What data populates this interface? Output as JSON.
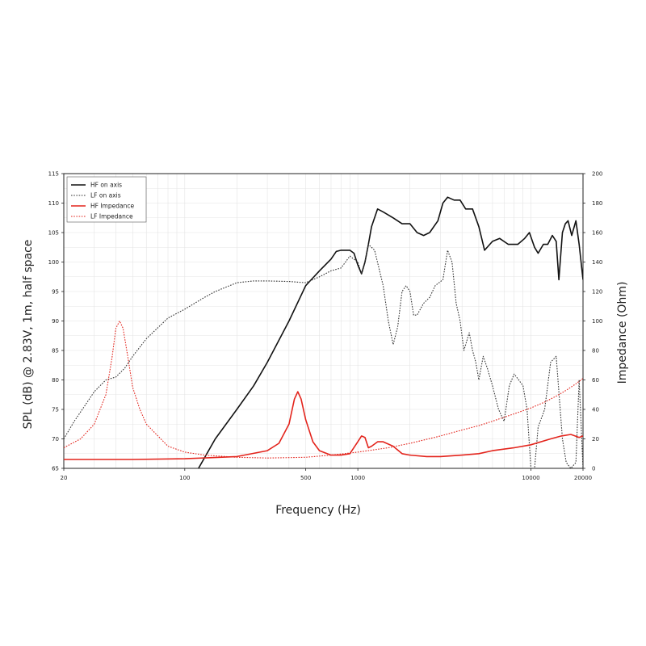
{
  "chart_data": {
    "type": "line",
    "xlabel": "Frequency (Hz)",
    "ylabel_left": "SPL (dB) @ 2.83V, 1m, half space",
    "ylabel_right": "Impedance (Ohm)",
    "x_scale": "log",
    "xlim": [
      20,
      20000
    ],
    "ylim_left": [
      65,
      115
    ],
    "ylim_right": [
      0,
      200
    ],
    "x_ticks": [
      {
        "value": 20,
        "label": "20"
      },
      {
        "value": 100,
        "label": "100"
      },
      {
        "value": 500,
        "label": "500"
      },
      {
        "value": 1000,
        "label": "1000"
      },
      {
        "value": 10000,
        "label": "10000"
      },
      {
        "value": 20000,
        "label": "20000"
      }
    ],
    "y_ticks_left": [
      "65",
      "70",
      "75",
      "80",
      "85",
      "90",
      "95",
      "100",
      "105",
      "110",
      "115"
    ],
    "y_ticks_right": [
      "0",
      "20",
      "40",
      "60",
      "80",
      "100",
      "120",
      "140",
      "160",
      "180",
      "200"
    ],
    "grid": true,
    "legend_position": "top-left",
    "series": [
      {
        "name": "HF on axis",
        "axis": "left",
        "color": "#111111",
        "style": "solid",
        "points": [
          [
            120,
            65
          ],
          [
            150,
            70
          ],
          [
            200,
            75
          ],
          [
            250,
            79
          ],
          [
            300,
            83
          ],
          [
            400,
            90
          ],
          [
            500,
            96
          ],
          [
            600,
            98.5
          ],
          [
            700,
            100.5
          ],
          [
            750,
            101.8
          ],
          [
            800,
            102
          ],
          [
            900,
            102
          ],
          [
            950,
            101.5
          ],
          [
            1000,
            99.5
          ],
          [
            1050,
            98
          ],
          [
            1100,
            100
          ],
          [
            1150,
            103
          ],
          [
            1200,
            106
          ],
          [
            1300,
            109
          ],
          [
            1400,
            108.5
          ],
          [
            1600,
            107.5
          ],
          [
            1800,
            106.5
          ],
          [
            2000,
            106.5
          ],
          [
            2200,
            105
          ],
          [
            2400,
            104.5
          ],
          [
            2600,
            105
          ],
          [
            2900,
            107
          ],
          [
            3100,
            110
          ],
          [
            3300,
            111
          ],
          [
            3600,
            110.5
          ],
          [
            3900,
            110.5
          ],
          [
            4200,
            109
          ],
          [
            4600,
            109
          ],
          [
            5000,
            106
          ],
          [
            5400,
            102
          ],
          [
            6000,
            103.5
          ],
          [
            6600,
            104
          ],
          [
            7400,
            103
          ],
          [
            8400,
            103
          ],
          [
            9200,
            104
          ],
          [
            9800,
            105
          ],
          [
            10500,
            102.5
          ],
          [
            11000,
            101.5
          ],
          [
            11800,
            103
          ],
          [
            12500,
            103
          ],
          [
            13300,
            104.5
          ],
          [
            14000,
            103.5
          ],
          [
            14500,
            97
          ],
          [
            15200,
            105
          ],
          [
            15800,
            106.5
          ],
          [
            16400,
            107
          ],
          [
            17200,
            104.5
          ],
          [
            18200,
            107
          ],
          [
            19000,
            103
          ],
          [
            20000,
            97
          ]
        ]
      },
      {
        "name": "LF on axis",
        "axis": "left",
        "color": "#333333",
        "style": "dotted",
        "points": [
          [
            20,
            70
          ],
          [
            23,
            73
          ],
          [
            27,
            76
          ],
          [
            30,
            78
          ],
          [
            35,
            80
          ],
          [
            40,
            80.5
          ],
          [
            45,
            82
          ],
          [
            50,
            84
          ],
          [
            60,
            87
          ],
          [
            80,
            90.5
          ],
          [
            100,
            92
          ],
          [
            130,
            94
          ],
          [
            150,
            95
          ],
          [
            200,
            96.5
          ],
          [
            250,
            96.8
          ],
          [
            300,
            96.8
          ],
          [
            400,
            96.7
          ],
          [
            500,
            96.5
          ],
          [
            600,
            97.5
          ],
          [
            700,
            98.5
          ],
          [
            800,
            99
          ],
          [
            900,
            101
          ],
          [
            1000,
            100
          ],
          [
            1050,
            98
          ],
          [
            1100,
            100
          ],
          [
            1150,
            103
          ],
          [
            1250,
            102
          ],
          [
            1400,
            96
          ],
          [
            1500,
            90
          ],
          [
            1600,
            86
          ],
          [
            1700,
            89
          ],
          [
            1800,
            95
          ],
          [
            1900,
            96
          ],
          [
            2000,
            95
          ],
          [
            2100,
            91
          ],
          [
            2200,
            91
          ],
          [
            2400,
            93
          ],
          [
            2600,
            94
          ],
          [
            2800,
            96
          ],
          [
            3100,
            97
          ],
          [
            3300,
            102
          ],
          [
            3500,
            100
          ],
          [
            3700,
            93
          ],
          [
            3900,
            90
          ],
          [
            4100,
            85
          ],
          [
            4400,
            88
          ],
          [
            4600,
            85
          ],
          [
            4800,
            83
          ],
          [
            5000,
            80
          ],
          [
            5300,
            84
          ],
          [
            5600,
            82
          ],
          [
            6000,
            79
          ],
          [
            6500,
            75
          ],
          [
            7000,
            73
          ],
          [
            7500,
            79
          ],
          [
            8000,
            81
          ],
          [
            8500,
            80
          ],
          [
            9000,
            79
          ],
          [
            9500,
            75
          ],
          [
            10000,
            65
          ],
          [
            10500,
            65
          ],
          [
            11000,
            72
          ],
          [
            12000,
            75
          ],
          [
            13000,
            83
          ],
          [
            14000,
            84
          ],
          [
            14500,
            78
          ],
          [
            15200,
            70
          ],
          [
            16000,
            66
          ],
          [
            17000,
            65
          ],
          [
            18200,
            66
          ],
          [
            19000,
            80
          ],
          [
            20000,
            65
          ]
        ]
      },
      {
        "name": "HF Impedance",
        "axis": "right",
        "color": "#e3241c",
        "style": "solid",
        "points": [
          [
            20,
            6
          ],
          [
            50,
            6
          ],
          [
            100,
            6.5
          ],
          [
            200,
            8
          ],
          [
            300,
            12
          ],
          [
            350,
            17
          ],
          [
            400,
            30
          ],
          [
            430,
            47
          ],
          [
            450,
            52
          ],
          [
            470,
            47
          ],
          [
            500,
            33
          ],
          [
            550,
            18
          ],
          [
            600,
            12
          ],
          [
            700,
            9
          ],
          [
            800,
            9
          ],
          [
            900,
            10
          ],
          [
            1000,
            18
          ],
          [
            1050,
            22
          ],
          [
            1100,
            21
          ],
          [
            1150,
            14
          ],
          [
            1200,
            15
          ],
          [
            1300,
            18
          ],
          [
            1400,
            18
          ],
          [
            1600,
            15
          ],
          [
            1800,
            10
          ],
          [
            2000,
            9
          ],
          [
            2500,
            8
          ],
          [
            3000,
            8
          ],
          [
            4000,
            9
          ],
          [
            5000,
            10
          ],
          [
            6000,
            12
          ],
          [
            8000,
            14
          ],
          [
            10000,
            16
          ],
          [
            13000,
            20
          ],
          [
            15000,
            22
          ],
          [
            17000,
            23
          ],
          [
            18000,
            22
          ],
          [
            19000,
            21
          ],
          [
            20000,
            22
          ]
        ]
      },
      {
        "name": "LF Impedance",
        "axis": "right",
        "color": "#e3241c",
        "style": "dotted",
        "points": [
          [
            20,
            14
          ],
          [
            25,
            20
          ],
          [
            30,
            30
          ],
          [
            35,
            50
          ],
          [
            38,
            75
          ],
          [
            40,
            95
          ],
          [
            42,
            100
          ],
          [
            44,
            95
          ],
          [
            47,
            75
          ],
          [
            50,
            55
          ],
          [
            55,
            40
          ],
          [
            60,
            30
          ],
          [
            70,
            22
          ],
          [
            80,
            15
          ],
          [
            100,
            11
          ],
          [
            130,
            9
          ],
          [
            200,
            7.5
          ],
          [
            300,
            7
          ],
          [
            500,
            7.5
          ],
          [
            700,
            9
          ],
          [
            1000,
            11
          ],
          [
            1500,
            14
          ],
          [
            2000,
            17
          ],
          [
            3000,
            22
          ],
          [
            4000,
            26
          ],
          [
            5000,
            29
          ],
          [
            6000,
            32
          ],
          [
            8000,
            37
          ],
          [
            10000,
            41
          ],
          [
            12000,
            45
          ],
          [
            14000,
            49
          ],
          [
            16000,
            53
          ],
          [
            18000,
            57
          ],
          [
            20000,
            61
          ]
        ]
      }
    ]
  }
}
